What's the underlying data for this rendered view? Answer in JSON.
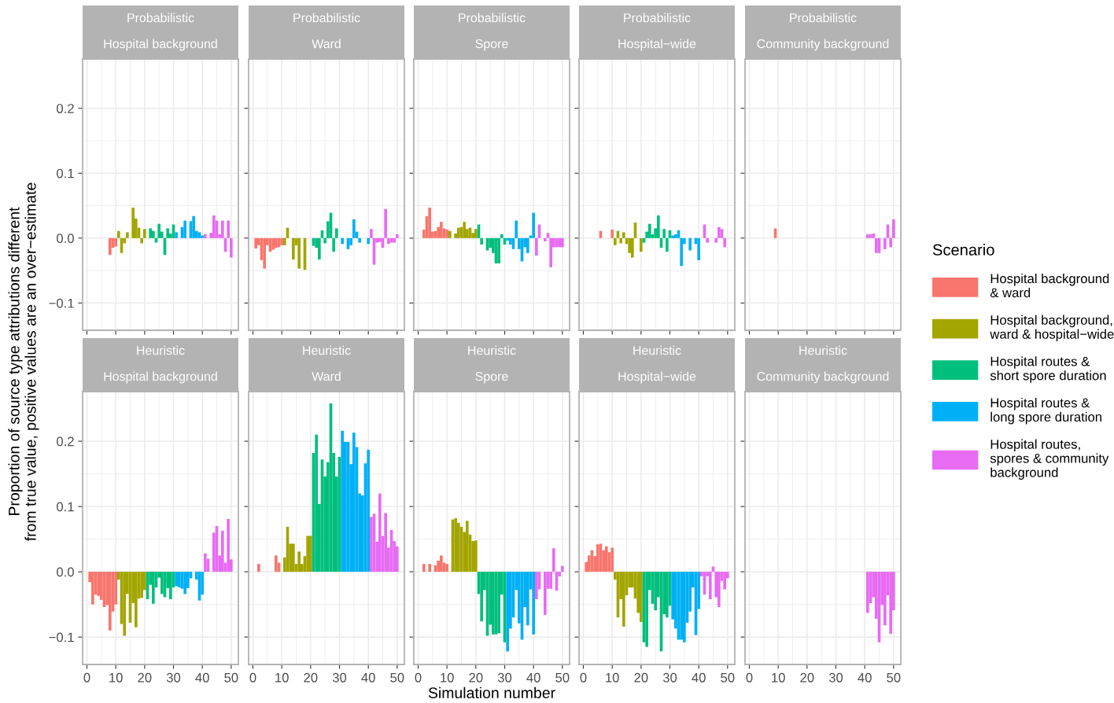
{
  "chart_data": [
    {
      "type": "bar",
      "title": "Probabilistic",
      "subtitle": "Hospital background",
      "ylabel": "Proportion of source type attributions different\nfrom true value, positive values are an over−estimate",
      "xlim": [
        -1.5,
        52.5
      ],
      "ylim": [
        -0.142,
        0.276
      ],
      "xticks": [
        0,
        10,
        20,
        30,
        40,
        50
      ],
      "yticks": [
        {
          "value": -0.1,
          "label": "−0.1"
        },
        {
          "value": 0.0,
          "label": "0.0"
        },
        {
          "value": 0.1,
          "label": "0.1"
        },
        {
          "value": 0.2,
          "label": "0.2"
        }
      ],
      "grid": true,
      "tick_labels": "y",
      "series": [
        {
          "color": "#F8766D",
          "x": [
            1,
            2,
            3,
            4,
            5,
            6,
            7,
            8,
            9,
            10
          ],
          "values": [
            0,
            0,
            0,
            0,
            0,
            0,
            0,
            -0.026,
            -0.015,
            -0.013
          ]
        },
        {
          "color": "#A3A500",
          "x": [
            11,
            12,
            13,
            14,
            15,
            16,
            17,
            18,
            19,
            20
          ],
          "values": [
            0.011,
            -0.023,
            -0.008,
            0.009,
            0,
            0.047,
            0.03,
            0.016,
            -0.008,
            0.014
          ]
        },
        {
          "color": "#00BF7D",
          "x": [
            21,
            22,
            23,
            24,
            25,
            26,
            27,
            28,
            29,
            30
          ],
          "values": [
            0,
            0.015,
            0.011,
            -0.007,
            0.022,
            0.01,
            -0.026,
            0.015,
            0.007,
            0.021
          ]
        },
        {
          "color": "#00B0F6",
          "x": [
            31,
            32,
            33,
            34,
            35,
            36,
            37,
            38,
            39,
            40
          ],
          "values": [
            0.009,
            0,
            0.017,
            0.027,
            0,
            0.026,
            0.034,
            0.011,
            0.009,
            0.004
          ]
        },
        {
          "color": "#E76BF3",
          "x": [
            41,
            42,
            43,
            44,
            45,
            46,
            47,
            48,
            49,
            50
          ],
          "values": [
            0.006,
            0,
            0.008,
            0.035,
            0.027,
            0.006,
            0.027,
            -0.021,
            0.027,
            -0.03
          ]
        }
      ]
    },
    {
      "type": "bar",
      "title": "Probabilistic",
      "subtitle": "Ward",
      "xlim": [
        -1.5,
        52.5
      ],
      "ylim": [
        -0.142,
        0.276
      ],
      "xticks": [
        0,
        10,
        20,
        30,
        40,
        50
      ],
      "yticks": [
        -0.1,
        0.0,
        0.1,
        0.2
      ],
      "grid": true,
      "tick_labels": false,
      "series": [
        {
          "color": "#F8766D",
          "x": [
            1,
            2,
            3,
            4,
            5,
            6,
            7,
            8,
            9,
            10
          ],
          "values": [
            -0.016,
            -0.011,
            -0.034,
            -0.047,
            -0.011,
            -0.021,
            -0.018,
            -0.015,
            -0.014,
            -0.011
          ]
        },
        {
          "color": "#A3A500",
          "x": [
            11,
            12,
            13,
            14,
            15,
            16,
            17,
            18,
            19,
            20
          ],
          "values": [
            -0.011,
            0.016,
            0,
            -0.033,
            -0.011,
            -0.047,
            0,
            -0.049,
            0,
            0
          ]
        },
        {
          "color": "#00BF7D",
          "x": [
            21,
            22,
            23,
            24,
            25,
            26,
            27,
            28,
            29,
            30
          ],
          "values": [
            -0.012,
            -0.015,
            -0.033,
            0.012,
            -0.008,
            0.026,
            0.039,
            -0.021,
            0.015,
            0
          ]
        },
        {
          "color": "#00B0F6",
          "x": [
            31,
            32,
            33,
            34,
            35,
            36,
            37,
            38,
            39,
            40
          ],
          "values": [
            -0.009,
            0,
            -0.017,
            -0.011,
            0.029,
            0.01,
            -0.007,
            0,
            0,
            -0.009
          ]
        },
        {
          "color": "#E76BF3",
          "x": [
            41,
            42,
            43,
            44,
            45,
            46,
            47,
            48,
            49,
            50
          ],
          "values": [
            0.014,
            -0.041,
            -0.007,
            -0.006,
            -0.015,
            0.045,
            -0.009,
            -0.007,
            -0.007,
            0.006
          ]
        }
      ]
    },
    {
      "type": "bar",
      "title": "Probabilistic",
      "subtitle": "Spore",
      "xlim": [
        -1.5,
        52.5
      ],
      "ylim": [
        -0.142,
        0.276
      ],
      "xticks": [
        0,
        10,
        20,
        30,
        40,
        50
      ],
      "yticks": [
        -0.1,
        0.0,
        0.1,
        0.2
      ],
      "grid": true,
      "tick_labels": false,
      "series": [
        {
          "color": "#F8766D",
          "x": [
            1,
            2,
            3,
            4,
            5,
            6,
            7,
            8,
            9,
            10
          ],
          "values": [
            0,
            0.013,
            0.034,
            0.047,
            0.01,
            0.011,
            0.017,
            0.025,
            0.015,
            0.013
          ]
        },
        {
          "color": "#A3A500",
          "x": [
            11,
            12,
            13,
            14,
            15,
            16,
            17,
            18,
            19,
            20
          ],
          "values": [
            0.011,
            0,
            0.007,
            0.016,
            0.017,
            0.025,
            0.014,
            0.016,
            0.008,
            0.014
          ]
        },
        {
          "color": "#00BF7D",
          "x": [
            21,
            22,
            23,
            24,
            25,
            26,
            27,
            28,
            29,
            30
          ],
          "values": [
            0.021,
            -0.01,
            0,
            -0.019,
            -0.015,
            -0.023,
            -0.039,
            -0.039,
            0.006,
            -0.01
          ]
        },
        {
          "color": "#00B0F6",
          "x": [
            31,
            32,
            33,
            34,
            35,
            36,
            37,
            38,
            39,
            40
          ],
          "values": [
            -0.004,
            -0.01,
            -0.017,
            0.027,
            -0.017,
            -0.036,
            -0.014,
            -0.023,
            0.004,
            0.039
          ]
        },
        {
          "color": "#E76BF3",
          "x": [
            41,
            42,
            43,
            44,
            45,
            46,
            47,
            48,
            49,
            50
          ],
          "values": [
            -0.027,
            0.021,
            0,
            -0.005,
            0.008,
            -0.045,
            -0.014,
            -0.014,
            -0.014,
            -0.014
          ]
        }
      ]
    },
    {
      "type": "bar",
      "title": "Probabilistic",
      "subtitle": "Hospital−wide",
      "xlim": [
        -1.5,
        52.5
      ],
      "ylim": [
        -0.142,
        0.276
      ],
      "xticks": [
        0,
        10,
        20,
        30,
        40,
        50
      ],
      "yticks": [
        -0.1,
        0.0,
        0.1,
        0.2
      ],
      "grid": true,
      "tick_labels": false,
      "series": [
        {
          "color": "#F8766D",
          "x": [
            1,
            2,
            3,
            4,
            5,
            6,
            7,
            8,
            9,
            10
          ],
          "values": [
            0,
            0,
            0,
            0,
            0,
            0.011,
            0,
            0,
            0,
            0.013
          ]
        },
        {
          "color": "#A3A500",
          "x": [
            11,
            12,
            13,
            14,
            15,
            16,
            17,
            18,
            19,
            20
          ],
          "values": [
            -0.011,
            0.011,
            -0.008,
            0.009,
            -0.009,
            -0.023,
            -0.03,
            0.024,
            0,
            -0.021
          ]
        },
        {
          "color": "#00BF7D",
          "x": [
            21,
            22,
            23,
            24,
            25,
            26,
            27,
            28,
            29,
            30
          ],
          "values": [
            -0.007,
            0.01,
            0.022,
            0.006,
            0.015,
            0.035,
            -0.015,
            0.014,
            -0.021,
            0.012
          ]
        },
        {
          "color": "#00B0F6",
          "x": [
            31,
            32,
            33,
            34,
            35,
            36,
            37,
            38,
            39,
            40
          ],
          "values": [
            0.004,
            0.006,
            0.012,
            -0.043,
            -0.009,
            0,
            -0.019,
            0,
            -0.009,
            -0.034
          ]
        },
        {
          "color": "#E76BF3",
          "x": [
            41,
            42,
            43,
            44,
            45,
            46,
            47,
            48,
            49,
            50
          ],
          "values": [
            0,
            0.021,
            -0.007,
            0,
            0,
            -0.007,
            0.017,
            0.014,
            -0.014,
            0
          ]
        }
      ]
    },
    {
      "type": "bar",
      "title": "Probabilistic",
      "subtitle": "Community background",
      "xlim": [
        -1.5,
        52.5
      ],
      "ylim": [
        -0.142,
        0.276
      ],
      "xticks": [
        0,
        10,
        20,
        30,
        40,
        50
      ],
      "yticks": [
        -0.1,
        0.0,
        0.1,
        0.2
      ],
      "grid": true,
      "tick_labels": false,
      "series": [
        {
          "color": "#F8766D",
          "x": [
            1,
            2,
            3,
            4,
            5,
            6,
            7,
            8,
            9,
            10
          ],
          "values": [
            0,
            0,
            0,
            0,
            0,
            0,
            0,
            0,
            0.015,
            0
          ]
        },
        {
          "color": "#A3A500",
          "x": [
            11,
            12,
            13,
            14,
            15,
            16,
            17,
            18,
            19,
            20
          ],
          "values": [
            0,
            0,
            0,
            0,
            0,
            0,
            0,
            0,
            0,
            0
          ]
        },
        {
          "color": "#00BF7D",
          "x": [
            21,
            22,
            23,
            24,
            25,
            26,
            27,
            28,
            29,
            30
          ],
          "values": [
            0,
            0,
            0,
            0,
            0,
            0,
            0,
            0,
            0,
            0
          ]
        },
        {
          "color": "#00B0F6",
          "x": [
            31,
            32,
            33,
            34,
            35,
            36,
            37,
            38,
            39,
            40
          ],
          "values": [
            0,
            0,
            0,
            0,
            0,
            0,
            0,
            0,
            0,
            0
          ]
        },
        {
          "color": "#E76BF3",
          "x": [
            41,
            42,
            43,
            44,
            45,
            46,
            47,
            48,
            49,
            50
          ],
          "values": [
            0.006,
            0.006,
            0.007,
            -0.023,
            -0.023,
            0,
            -0.017,
            0.021,
            -0.014,
            0.029
          ]
        }
      ]
    },
    {
      "type": "bar",
      "title": "Heuristic",
      "subtitle": "Hospital background",
      "xlim": [
        -1.5,
        52.5
      ],
      "ylim": [
        -0.142,
        0.276
      ],
      "xticks": [
        0,
        10,
        20,
        30,
        40,
        50
      ],
      "yticks": [
        {
          "value": -0.1,
          "label": "−0.1"
        },
        {
          "value": 0.0,
          "label": "0.0"
        },
        {
          "value": 0.1,
          "label": "0.1"
        },
        {
          "value": 0.2,
          "label": "0.2"
        }
      ],
      "grid": true,
      "series": [
        {
          "color": "#F8766D",
          "x": [
            1,
            2,
            3,
            4,
            5,
            6,
            7,
            8,
            9,
            10
          ],
          "values": [
            -0.016,
            -0.05,
            -0.035,
            -0.037,
            -0.043,
            -0.054,
            -0.051,
            -0.09,
            -0.061,
            -0.05
          ]
        },
        {
          "color": "#A3A500",
          "x": [
            11,
            12,
            13,
            14,
            15,
            16,
            17,
            18,
            19,
            20
          ],
          "values": [
            -0.012,
            -0.08,
            -0.098,
            -0.034,
            -0.078,
            -0.048,
            -0.085,
            -0.041,
            -0.04,
            -0.028
          ]
        },
        {
          "color": "#00BF7D",
          "x": [
            21,
            22,
            23,
            24,
            25,
            26,
            27,
            28,
            29,
            30
          ],
          "values": [
            -0.042,
            -0.02,
            -0.049,
            -0.024,
            -0.009,
            -0.034,
            -0.039,
            -0.025,
            -0.042,
            -0.024
          ]
        },
        {
          "color": "#00B0F6",
          "x": [
            31,
            32,
            33,
            34,
            35,
            36,
            37,
            38,
            39,
            40
          ],
          "values": [
            -0.022,
            -0.024,
            -0.026,
            -0.034,
            -0.025,
            -0.01,
            0,
            -0.012,
            -0.044,
            -0.035
          ]
        },
        {
          "color": "#E76BF3",
          "x": [
            41,
            42,
            43,
            44,
            45,
            46,
            47,
            48,
            49,
            50
          ],
          "values": [
            0.028,
            0.02,
            0,
            0.06,
            0.07,
            0.025,
            0.063,
            0.014,
            0.081,
            0.019
          ]
        }
      ]
    },
    {
      "type": "bar",
      "title": "Heuristic",
      "subtitle": "Ward",
      "legend": "right",
      "legend_title": "Scenario",
      "xlim": [
        -1.5,
        52.5
      ],
      "ylim": [
        -0.142,
        0.276
      ],
      "xticks": [
        0,
        10,
        20,
        30,
        40,
        50
      ],
      "yticks": [
        -0.1,
        0.0,
        0.1,
        0.2
      ],
      "grid": true,
      "tick_labels": "x",
      "series": [
        {
          "name": "Hospital background\n& ward",
          "color": "#F8766D",
          "x": [
            1,
            2,
            3,
            4,
            5,
            6,
            7,
            8,
            9,
            10
          ],
          "values": [
            0,
            0.012,
            0,
            0,
            0,
            0,
            0,
            0.025,
            0.014,
            0
          ]
        },
        {
          "name": "Hospital background,\nward & hospital−wide",
          "color": "#A3A500",
          "x": [
            11,
            12,
            13,
            14,
            15,
            16,
            17,
            18,
            19,
            20
          ],
          "values": [
            0.022,
            0.069,
            0.043,
            0.043,
            0.012,
            0.031,
            0.012,
            0.024,
            0.055,
            0.055
          ]
        },
        {
          "name": "Hospital routes &\nshort spore duration",
          "color": "#00BF7D",
          "x": [
            21,
            22,
            23,
            24,
            25,
            26,
            27,
            28,
            29,
            30
          ],
          "values": [
            0.182,
            0.21,
            0.104,
            0.172,
            0.146,
            0.168,
            0.258,
            0.182,
            0.146,
            0.176
          ]
        },
        {
          "name": "Hospital routes &\nlong spore duration",
          "color": "#00B0F6",
          "x": [
            31,
            32,
            33,
            34,
            35,
            36,
            37,
            38,
            39,
            40
          ],
          "values": [
            0.216,
            0.199,
            0.199,
            0.165,
            0.213,
            0.191,
            0.12,
            0.117,
            0.166,
            0.187
          ]
        },
        {
          "name": "Hospital routes,\nspores & community\nbackground",
          "color": "#E76BF3",
          "x": [
            41,
            42,
            43,
            44,
            45,
            46,
            47,
            48,
            49,
            50
          ],
          "values": [
            0.084,
            0.089,
            0.046,
            0.12,
            0.055,
            0.09,
            0.037,
            0.064,
            0.047,
            0.039
          ]
        }
      ]
    },
    {
      "type": "bar",
      "title": "Heuristic",
      "subtitle": "Spore",
      "xlabel": "Simulation number",
      "xlim": [
        -1.5,
        52.5
      ],
      "ylim": [
        -0.142,
        0.276
      ],
      "xticks": [
        0,
        10,
        20,
        30,
        40,
        50
      ],
      "yticks": [
        -0.1,
        0.0,
        0.1,
        0.2
      ],
      "grid": true,
      "tick_labels": "x",
      "series": [
        {
          "color": "#F8766D",
          "x": [
            1,
            2,
            3,
            4,
            5,
            6,
            7,
            8,
            9,
            10
          ],
          "values": [
            0,
            0.012,
            0,
            0.012,
            0,
            0.01,
            0.017,
            0.025,
            0.014,
            0.012
          ]
        },
        {
          "color": "#A3A500",
          "x": [
            11,
            12,
            13,
            14,
            15,
            16,
            17,
            18,
            19,
            20
          ],
          "values": [
            0,
            0.08,
            0.082,
            0.075,
            0.069,
            0.061,
            0.078,
            0.057,
            0.047,
            0.048
          ]
        },
        {
          "color": "#00BF7D",
          "x": [
            21,
            22,
            23,
            24,
            25,
            26,
            27,
            28,
            29,
            30
          ],
          "values": [
            -0.034,
            -0.076,
            -0.028,
            -0.098,
            -0.081,
            -0.096,
            -0.096,
            -0.094,
            -0.035,
            -0.108
          ]
        },
        {
          "color": "#00B0F6",
          "x": [
            31,
            32,
            33,
            34,
            35,
            36,
            37,
            38,
            39,
            40
          ],
          "values": [
            -0.122,
            -0.087,
            -0.07,
            -0.028,
            -0.079,
            -0.104,
            -0.054,
            -0.082,
            -0.027,
            -0.096
          ]
        },
        {
          "color": "#E76BF3",
          "x": [
            41,
            42,
            43,
            44,
            45,
            46,
            47,
            48,
            49,
            50
          ],
          "values": [
            -0.042,
            -0.027,
            0,
            -0.066,
            -0.026,
            -0.026,
            0.036,
            -0.029,
            -0.007,
            0.009
          ]
        }
      ]
    },
    {
      "type": "bar",
      "title": "Heuristic",
      "subtitle": "Hospital−wide",
      "xlim": [
        -1.5,
        52.5
      ],
      "ylim": [
        -0.142,
        0.276
      ],
      "xticks": [
        0,
        10,
        20,
        30,
        40,
        50
      ],
      "yticks": [
        -0.1,
        0.0,
        0.1,
        0.2
      ],
      "grid": true,
      "tick_labels": "x",
      "series": [
        {
          "color": "#F8766D",
          "x": [
            1,
            2,
            3,
            4,
            5,
            6,
            7,
            8,
            9,
            10
          ],
          "values": [
            0.015,
            0.025,
            0.033,
            0.024,
            0.042,
            0.043,
            0.033,
            0.039,
            0.03,
            0.037
          ]
        },
        {
          "color": "#A3A500",
          "x": [
            11,
            12,
            13,
            14,
            15,
            16,
            17,
            18,
            19,
            20
          ],
          "values": [
            -0.012,
            -0.07,
            -0.042,
            -0.084,
            -0.036,
            -0.024,
            -0.024,
            -0.041,
            -0.063,
            -0.077
          ]
        },
        {
          "color": "#00BF7D",
          "x": [
            21,
            22,
            23,
            24,
            25,
            26,
            27,
            28,
            29,
            30
          ],
          "values": [
            -0.108,
            -0.115,
            -0.028,
            -0.049,
            -0.059,
            -0.039,
            -0.122,
            -0.065,
            -0.07,
            -0.052
          ]
        },
        {
          "color": "#00B0F6",
          "x": [
            31,
            32,
            33,
            34,
            35,
            36,
            37,
            38,
            39,
            40
          ],
          "values": [
            -0.073,
            -0.087,
            -0.104,
            -0.104,
            -0.108,
            -0.078,
            -0.061,
            -0.024,
            -0.097,
            -0.057
          ]
        },
        {
          "color": "#E76BF3",
          "x": [
            41,
            42,
            43,
            44,
            45,
            46,
            47,
            48,
            49,
            50
          ],
          "values": [
            -0.007,
            -0.035,
            -0.007,
            -0.042,
            0.008,
            -0.039,
            -0.054,
            -0.014,
            -0.027,
            -0.01
          ]
        }
      ]
    },
    {
      "type": "bar",
      "title": "Heuristic",
      "subtitle": "Community background",
      "xlim": [
        -1.5,
        52.5
      ],
      "ylim": [
        -0.142,
        0.276
      ],
      "xticks": [
        0,
        10,
        20,
        30,
        40,
        50
      ],
      "yticks": [
        -0.1,
        0.0,
        0.1,
        0.2
      ],
      "grid": true,
      "tick_labels": "x",
      "series": [
        {
          "color": "#F8766D",
          "x": [
            1,
            2,
            3,
            4,
            5,
            6,
            7,
            8,
            9,
            10
          ],
          "values": [
            0,
            0,
            0,
            0,
            0,
            0,
            0,
            0,
            0,
            0
          ]
        },
        {
          "color": "#A3A500",
          "x": [
            11,
            12,
            13,
            14,
            15,
            16,
            17,
            18,
            19,
            20
          ],
          "values": [
            0,
            0,
            0,
            0,
            0,
            0,
            0,
            0,
            0,
            0
          ]
        },
        {
          "color": "#00BF7D",
          "x": [
            21,
            22,
            23,
            24,
            25,
            26,
            27,
            28,
            29,
            30
          ],
          "values": [
            0,
            0,
            0,
            0,
            0,
            0,
            0,
            0,
            0,
            0
          ]
        },
        {
          "color": "#00B0F6",
          "x": [
            31,
            32,
            33,
            34,
            35,
            36,
            37,
            38,
            39,
            40
          ],
          "values": [
            0,
            0,
            0,
            0,
            0,
            0,
            0,
            0,
            0,
            0
          ]
        },
        {
          "color": "#E76BF3",
          "x": [
            41,
            42,
            43,
            44,
            45,
            46,
            47,
            48,
            49,
            50
          ],
          "values": [
            -0.063,
            -0.048,
            -0.039,
            -0.072,
            -0.108,
            -0.051,
            -0.082,
            -0.036,
            -0.095,
            -0.059
          ]
        }
      ]
    }
  ]
}
